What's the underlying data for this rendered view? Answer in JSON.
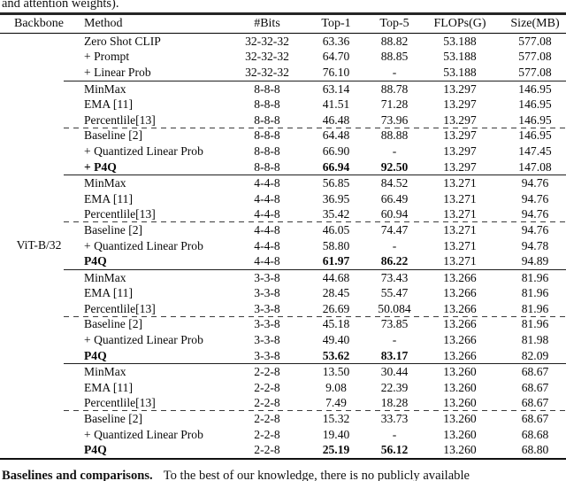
{
  "page": {
    "top_caption": "and attention weights).",
    "bottom_lead": "Baselines and comparisons.",
    "bottom_rest": "To the best of our knowledge, there is no publicly available"
  },
  "table": {
    "headers": [
      "Backbone",
      "Method",
      "#Bits",
      "Top-1",
      "Top-5",
      "FLOPs(G)",
      "Size(MB)"
    ],
    "backbone_label": "ViT-B/32",
    "groups": [
      {
        "rows": [
          {
            "method": "Zero Shot CLIP",
            "bits": "32-32-32",
            "top1": "63.36",
            "top5": "88.82",
            "flops": "53.188",
            "size": "577.08"
          },
          {
            "method": "+ Prompt",
            "bits": "32-32-32",
            "top1": "64.70",
            "top5": "88.85",
            "flops": "53.188",
            "size": "577.08"
          },
          {
            "method": "+ Linear Prob",
            "bits": "32-32-32",
            "top1": "76.10",
            "top5": "-",
            "flops": "53.188",
            "size": "577.08"
          }
        ]
      },
      {
        "rows": [
          {
            "method": "MinMax",
            "bits": "8-8-8",
            "top1": "63.14",
            "top5": "88.78",
            "flops": "13.297",
            "size": "146.95"
          },
          {
            "method": "EMA [11]",
            "bits": "8-8-8",
            "top1": "41.51",
            "top5": "71.28",
            "flops": "13.297",
            "size": "146.95"
          },
          {
            "method": "Percentlile[13]",
            "bits": "8-8-8",
            "top1": "46.48",
            "top5": "73.96",
            "flops": "13.297",
            "size": "146.95"
          },
          {
            "method": "Baseline [2]",
            "bits": "8-8-8",
            "top1": "64.48",
            "top5": "88.88",
            "flops": "13.297",
            "size": "146.95",
            "dashed": true
          },
          {
            "method": "+ Quantized Linear Prob",
            "bits": "8-8-8",
            "top1": "66.90",
            "top5": "-",
            "flops": "13.297",
            "size": "147.45"
          },
          {
            "method": "+ P4Q",
            "bits": "8-8-8",
            "top1": "66.94",
            "top5": "92.50",
            "flops": "13.297",
            "size": "147.08",
            "bold": true
          }
        ]
      },
      {
        "rows": [
          {
            "method": "MinMax",
            "bits": "4-4-8",
            "top1": "56.85",
            "top5": "84.52",
            "flops": "13.271",
            "size": "94.76"
          },
          {
            "method": "EMA [11]",
            "bits": "4-4-8",
            "top1": "36.95",
            "top5": "66.49",
            "flops": "13.271",
            "size": "94.76"
          },
          {
            "method": "Percentlile[13]",
            "bits": "4-4-8",
            "top1": "35.42",
            "top5": "60.94",
            "flops": "13.271",
            "size": "94.76"
          },
          {
            "method": "Baseline [2]",
            "bits": "4-4-8",
            "top1": "46.05",
            "top5": "74.47",
            "flops": "13.271",
            "size": "94.76",
            "dashed": true
          },
          {
            "method": "+ Quantized Linear Prob",
            "bits": "4-4-8",
            "top1": "58.80",
            "top5": "-",
            "flops": "13.271",
            "size": "94.78"
          },
          {
            "method": "P4Q",
            "bits": "4-4-8",
            "top1": "61.97",
            "top5": "86.22",
            "flops": "13.271",
            "size": "94.89",
            "bold": true
          }
        ]
      },
      {
        "rows": [
          {
            "method": "MinMax",
            "bits": "3-3-8",
            "top1": "44.68",
            "top5": "73.43",
            "flops": "13.266",
            "size": "81.96"
          },
          {
            "method": "EMA [11]",
            "bits": "3-3-8",
            "top1": "28.45",
            "top5": "55.47",
            "flops": "13.266",
            "size": "81.96"
          },
          {
            "method": "Percentlile[13]",
            "bits": "3-3-8",
            "top1": "26.69",
            "top5": "50.084",
            "flops": "13.266",
            "size": "81.96"
          },
          {
            "method": "Baseline [2]",
            "bits": "3-3-8",
            "top1": "45.18",
            "top5": "73.85",
            "flops": "13.266",
            "size": "81.96",
            "dashed": true
          },
          {
            "method": "+ Quantized Linear Prob",
            "bits": "3-3-8",
            "top1": "49.40",
            "top5": "-",
            "flops": "13.266",
            "size": "81.98"
          },
          {
            "method": "P4Q",
            "bits": "3-3-8",
            "top1": "53.62",
            "top5": "83.17",
            "flops": "13.266",
            "size": "82.09",
            "bold": true
          }
        ]
      },
      {
        "rows": [
          {
            "method": "MinMax",
            "bits": "2-2-8",
            "top1": "13.50",
            "top5": "30.44",
            "flops": "13.260",
            "size": "68.67"
          },
          {
            "method": "EMA [11]",
            "bits": "2-2-8",
            "top1": "9.08",
            "top5": "22.39",
            "flops": "13.260",
            "size": "68.67"
          },
          {
            "method": "Percentlile[13]",
            "bits": "2-2-8",
            "top1": "7.49",
            "top5": "18.28",
            "flops": "13.260",
            "size": "68.67"
          },
          {
            "method": "Baseline [2]",
            "bits": "2-2-8",
            "top1": "15.32",
            "top5": "33.73",
            "flops": "13.260",
            "size": "68.67",
            "dashed": true
          },
          {
            "method": "+ Quantized Linear Prob",
            "bits": "2-2-8",
            "top1": "19.40",
            "top5": "-",
            "flops": "13.260",
            "size": "68.68"
          },
          {
            "method": "P4Q",
            "bits": "2-2-8",
            "top1": "25.19",
            "top5": "56.12",
            "flops": "13.260",
            "size": "68.80",
            "bold": true
          }
        ]
      }
    ]
  }
}
